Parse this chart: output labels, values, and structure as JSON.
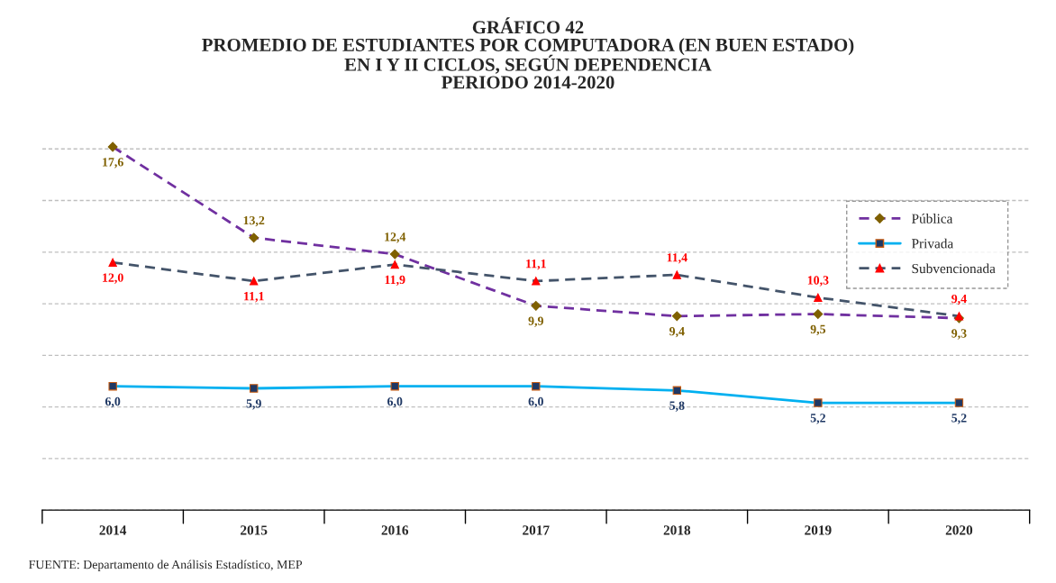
{
  "chart_data": {
    "type": "line",
    "title": "GRÁFICO 42\nPROMEDIO DE ESTUDIANTES POR COMPUTADORA (EN BUEN ESTADO)\nEN I Y II CICLOS, SEGÚN DEPENDENCIA\nPERIODO 2014-2020",
    "categories": [
      "2014",
      "2015",
      "2016",
      "2017",
      "2018",
      "2019",
      "2020"
    ],
    "series": [
      {
        "name": "Pública",
        "color": "#7030a0",
        "colors": [
          "#7f6000",
          "#7f6000",
          "#7f6000",
          "#7f6000",
          "#7f6000",
          "#7f6000",
          "#7f6000"
        ],
        "marker": "diamond",
        "line_style": "dashed",
        "values": [
          17.6,
          13.2,
          12.4,
          9.9,
          9.4,
          9.5,
          9.3
        ],
        "value_labels": [
          "17,6",
          "13,2",
          "12,4",
          "9,9",
          "9,4",
          "9,5",
          "9,3"
        ]
      },
      {
        "name": "Privada",
        "color": "#00b0f0",
        "colors": [
          "#1f3864",
          "#1f3864",
          "#1f3864",
          "#1f3864",
          "#1f3864",
          "#1f3864",
          "#1f3864"
        ],
        "marker": "square",
        "line_style": "solid",
        "values": [
          6.0,
          5.9,
          6.0,
          6.0,
          5.8,
          5.2,
          5.2
        ],
        "value_labels": [
          "6,0",
          "5,9",
          "6,0",
          "6,0",
          "5,8",
          "5,2",
          "5,2"
        ]
      },
      {
        "name": "Subvencionada",
        "color": "#44546a",
        "colors": [
          "#ff0000",
          "#ff0000",
          "#ff0000",
          "#ff0000",
          "#ff0000",
          "#ff0000",
          "#ff0000"
        ],
        "marker": "triangle",
        "line_style": "dashed",
        "values": [
          12.0,
          11.1,
          11.9,
          11.1,
          11.4,
          10.3,
          9.4
        ],
        "value_labels": [
          "12,0",
          "11,1",
          "11,9",
          "11,1",
          "11,4",
          "10,3",
          "9,4"
        ]
      }
    ],
    "tick_labels": "x",
    "grid": "y",
    "legend": "top right",
    "annotations": [
      "FUENTE: Departamento de Análisis Estadístico, MEP"
    ]
  }
}
